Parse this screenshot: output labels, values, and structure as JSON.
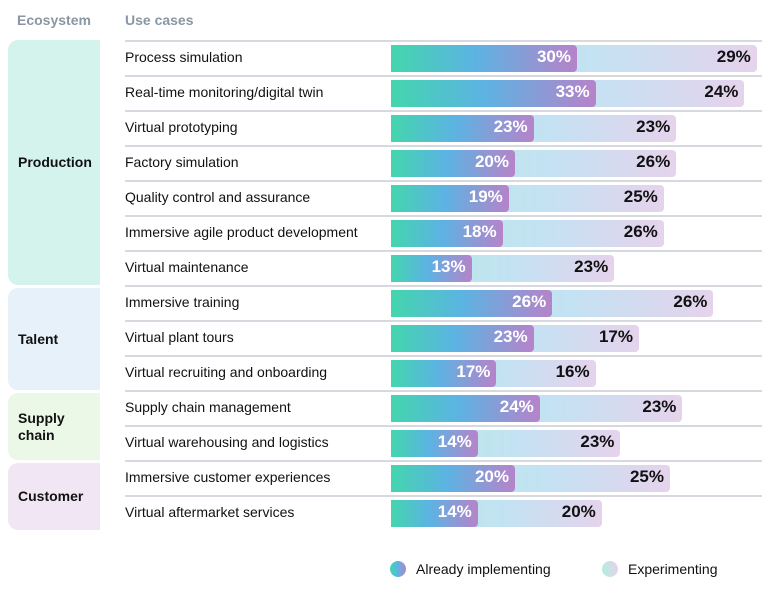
{
  "chart_data": {
    "type": "bar",
    "stacked": true,
    "orientation": "horizontal",
    "headers": {
      "ecosystem": "Ecosystem",
      "use_cases": "Use cases"
    },
    "groups": [
      {
        "name": "Production",
        "color": "#4dd4ac",
        "bg": "#d4f3ec",
        "rows": [
          0,
          1,
          2,
          3,
          4,
          5,
          6
        ]
      },
      {
        "name": "Talent",
        "color": "#5db1e4",
        "bg": "#e7f1fa",
        "rows": [
          7,
          8,
          9
        ]
      },
      {
        "name": "Supply chain",
        "color": "#8fe07a",
        "bg": "#ecf8e7",
        "rows": [
          10,
          11
        ]
      },
      {
        "name": "Customer",
        "color": "#a560c0",
        "bg": "#f1e6f4",
        "rows": [
          12,
          13
        ]
      }
    ],
    "categories": [
      "Process simulation",
      "Real-time monitoring/digital twin",
      "Virtual prototyping",
      "Factory simulation",
      "Quality control and assurance",
      "Immersive agile product development",
      "Virtual maintenance",
      "Immersive training",
      "Virtual plant tours",
      "Virtual recruiting and onboarding",
      "Supply chain management",
      "Virtual warehousing and logistics",
      "Immersive customer experiences",
      "Virtual aftermarket services"
    ],
    "series": [
      {
        "name": "Already implementing",
        "values": [
          30,
          33,
          23,
          20,
          19,
          18,
          13,
          26,
          23,
          17,
          24,
          14,
          20,
          14
        ]
      },
      {
        "name": "Experimenting",
        "values": [
          29,
          24,
          23,
          26,
          25,
          26,
          23,
          26,
          17,
          16,
          23,
          23,
          25,
          20
        ]
      }
    ],
    "legend": "bottom-right"
  }
}
